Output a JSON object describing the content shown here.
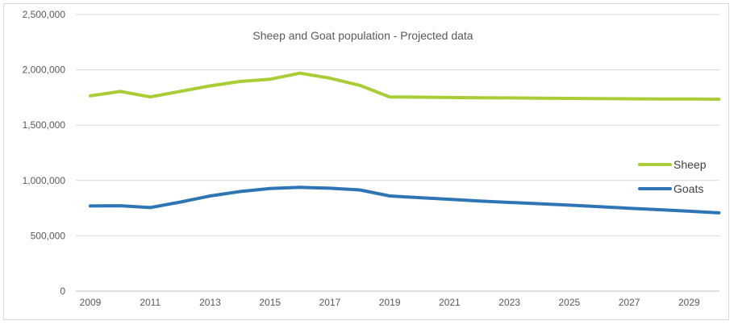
{
  "chart_data": {
    "type": "line",
    "title": "Sheep and Goat population - Projected data",
    "xlabel": "",
    "ylabel": "",
    "x": [
      2009,
      2010,
      2011,
      2012,
      2013,
      2014,
      2015,
      2016,
      2017,
      2018,
      2019,
      2020,
      2021,
      2022,
      2023,
      2024,
      2025,
      2026,
      2027,
      2028,
      2029,
      2030
    ],
    "x_tick_labels": [
      "2009",
      "2011",
      "2013",
      "2015",
      "2017",
      "2019",
      "2021",
      "2023",
      "2025",
      "2027",
      "2029"
    ],
    "y_tick_labels": [
      "0",
      "500,000",
      "1,000,000",
      "1,500,000",
      "2,000,000",
      "2,500,000"
    ],
    "ylim": [
      0,
      2500000
    ],
    "grid": "horizontal",
    "legend_position": "right",
    "series": [
      {
        "name": "Sheep",
        "color": "#a9cd37",
        "values": [
          1765000,
          1805000,
          1755000,
          1805000,
          1855000,
          1895000,
          1915000,
          1970000,
          1925000,
          1860000,
          1755000,
          1753000,
          1750000,
          1748000,
          1746000,
          1744000,
          1742000,
          1740000,
          1738000,
          1737000,
          1736000,
          1735000
        ]
      },
      {
        "name": "Goats",
        "color": "#2e75b6",
        "values": [
          770000,
          772000,
          755000,
          805000,
          860000,
          900000,
          928000,
          938000,
          930000,
          915000,
          860000,
          845000,
          830000,
          815000,
          802000,
          790000,
          777000,
          763000,
          749000,
          736000,
          722000,
          708000
        ]
      }
    ]
  },
  "colors": {
    "grid": "#d9d9d9",
    "axis": "#bfbfbf",
    "text": "#595959"
  }
}
